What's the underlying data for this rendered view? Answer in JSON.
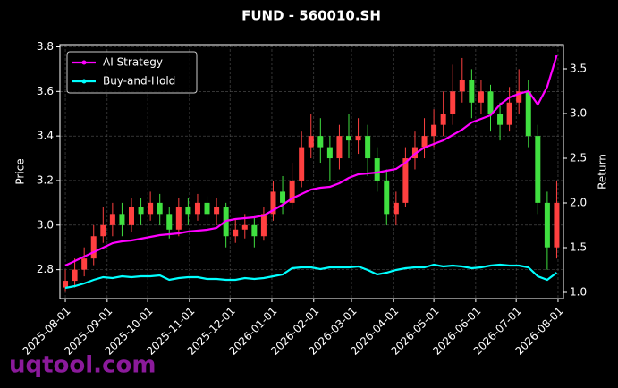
{
  "chart_data": {
    "type": "candlestick",
    "title": "FUND - 560010.SH",
    "x": [
      "2025-08-01",
      "2025-08-08",
      "2025-08-15",
      "2025-08-22",
      "2025-08-29",
      "2025-09-05",
      "2025-09-12",
      "2025-09-19",
      "2025-09-26",
      "2025-10-03",
      "2025-10-10",
      "2025-10-17",
      "2025-10-24",
      "2025-10-31",
      "2025-11-07",
      "2025-11-14",
      "2025-11-21",
      "2025-11-28",
      "2025-12-05",
      "2025-12-12",
      "2025-12-19",
      "2025-12-26",
      "2026-01-02",
      "2026-01-09",
      "2026-01-16",
      "2026-01-23",
      "2026-01-30",
      "2026-02-06",
      "2026-02-13",
      "2026-02-20",
      "2026-02-27",
      "2026-03-06",
      "2026-03-13",
      "2026-03-20",
      "2026-03-27",
      "2026-04-03",
      "2026-04-10",
      "2026-04-17",
      "2026-04-24",
      "2026-05-01",
      "2026-05-08",
      "2026-05-15",
      "2026-05-22",
      "2026-05-29",
      "2026-06-05",
      "2026-06-12",
      "2026-06-19",
      "2026-06-26",
      "2026-07-03",
      "2026-07-10",
      "2026-07-17",
      "2026-07-24",
      "2026-07-31"
    ],
    "open": [
      2.72,
      2.75,
      2.8,
      2.85,
      2.95,
      3.0,
      3.05,
      3.0,
      3.08,
      3.05,
      3.1,
      3.05,
      2.98,
      3.08,
      3.05,
      3.1,
      3.05,
      3.08,
      2.95,
      2.98,
      3.0,
      2.95,
      3.05,
      3.15,
      3.1,
      3.2,
      3.35,
      3.4,
      3.35,
      3.3,
      3.4,
      3.38,
      3.4,
      3.3,
      3.2,
      3.05,
      3.1,
      3.3,
      3.35,
      3.4,
      3.45,
      3.5,
      3.6,
      3.65,
      3.55,
      3.6,
      3.5,
      3.45,
      3.55,
      3.6,
      3.4,
      3.1,
      2.9
    ],
    "high": [
      2.8,
      2.85,
      2.9,
      3.0,
      3.08,
      3.1,
      3.1,
      3.12,
      3.12,
      3.15,
      3.14,
      3.08,
      3.12,
      3.12,
      3.14,
      3.13,
      3.12,
      3.1,
      3.03,
      3.05,
      3.04,
      3.08,
      3.2,
      3.22,
      3.28,
      3.42,
      3.5,
      3.48,
      3.4,
      3.45,
      3.5,
      3.48,
      3.45,
      3.35,
      3.25,
      3.15,
      3.35,
      3.42,
      3.48,
      3.52,
      3.6,
      3.72,
      3.75,
      3.7,
      3.65,
      3.63,
      3.55,
      3.62,
      3.7,
      3.65,
      3.45,
      3.15,
      3.2
    ],
    "low": [
      2.7,
      2.72,
      2.77,
      2.82,
      2.92,
      2.95,
      2.95,
      2.97,
      3.0,
      3.02,
      3.0,
      2.94,
      2.95,
      3.0,
      3.02,
      3.0,
      3.0,
      2.9,
      2.92,
      2.94,
      2.9,
      2.93,
      3.02,
      3.05,
      3.07,
      3.17,
      3.3,
      3.28,
      3.2,
      3.25,
      3.3,
      3.32,
      3.22,
      3.15,
      3.0,
      3.0,
      3.08,
      3.25,
      3.3,
      3.35,
      3.4,
      3.45,
      3.55,
      3.48,
      3.5,
      3.42,
      3.38,
      3.42,
      3.5,
      3.35,
      3.05,
      2.8,
      2.85
    ],
    "close": [
      2.75,
      2.8,
      2.85,
      2.95,
      3.0,
      3.05,
      3.0,
      3.08,
      3.05,
      3.1,
      3.05,
      2.98,
      3.08,
      3.05,
      3.1,
      3.05,
      3.08,
      2.95,
      2.98,
      3.0,
      2.95,
      3.05,
      3.15,
      3.1,
      3.2,
      3.35,
      3.4,
      3.35,
      3.3,
      3.4,
      3.38,
      3.4,
      3.3,
      3.2,
      3.05,
      3.1,
      3.3,
      3.35,
      3.4,
      3.45,
      3.5,
      3.6,
      3.65,
      3.55,
      3.6,
      3.5,
      3.45,
      3.55,
      3.6,
      3.4,
      3.1,
      2.9,
      3.1
    ],
    "up_color": "#ff4040",
    "down_color": "#40e040",
    "series": [
      {
        "name": "AI Strategy",
        "color": "#ff00ff",
        "axis": "y2",
        "values": [
          1.3,
          1.35,
          1.4,
          1.45,
          1.5,
          1.55,
          1.57,
          1.58,
          1.6,
          1.62,
          1.64,
          1.65,
          1.66,
          1.68,
          1.69,
          1.7,
          1.72,
          1.8,
          1.82,
          1.83,
          1.84,
          1.86,
          1.92,
          1.98,
          2.05,
          2.1,
          2.15,
          2.17,
          2.18,
          2.22,
          2.28,
          2.32,
          2.33,
          2.34,
          2.36,
          2.38,
          2.45,
          2.55,
          2.62,
          2.66,
          2.7,
          2.76,
          2.82,
          2.9,
          2.94,
          2.98,
          3.1,
          3.18,
          3.22,
          3.25,
          3.1,
          3.3,
          3.65
        ]
      },
      {
        "name": "Buy-and-Hold",
        "color": "#00ffff",
        "axis": "y2",
        "values": [
          1.05,
          1.07,
          1.1,
          1.14,
          1.17,
          1.16,
          1.18,
          1.17,
          1.18,
          1.18,
          1.19,
          1.14,
          1.16,
          1.17,
          1.17,
          1.15,
          1.15,
          1.14,
          1.14,
          1.16,
          1.15,
          1.16,
          1.18,
          1.2,
          1.27,
          1.28,
          1.28,
          1.26,
          1.28,
          1.28,
          1.28,
          1.29,
          1.25,
          1.2,
          1.22,
          1.25,
          1.27,
          1.28,
          1.28,
          1.31,
          1.29,
          1.3,
          1.29,
          1.27,
          1.28,
          1.3,
          1.31,
          1.3,
          1.3,
          1.28,
          1.18,
          1.14,
          1.22
        ]
      }
    ],
    "ylabel": "Price",
    "y2label": "Return",
    "xlim": [
      "2025-07-28",
      "2026-08-05"
    ],
    "xticks": [
      "2025-08-01",
      "2025-09-01",
      "2025-10-01",
      "2025-11-01",
      "2025-12-01",
      "2026-01-01",
      "2026-02-01",
      "2026-03-01",
      "2026-04-01",
      "2026-05-01",
      "2026-06-01",
      "2026-07-01",
      "2026-08-01"
    ],
    "ylim": [
      2.67,
      3.81
    ],
    "yticks": [
      2.8,
      {
        "value": 3,
        "label": "3.0"
      },
      3.2,
      3.4,
      3.6,
      3.8
    ],
    "y2lim": [
      0.93,
      3.77
    ],
    "y2ticks": [
      {
        "value": 1,
        "label": "1.0"
      },
      1.5,
      {
        "value": 2,
        "label": "2.0"
      },
      2.5,
      {
        "value": 3,
        "label": "3.0"
      },
      3.5
    ],
    "grid": true,
    "legend": "upper left",
    "watermark": "uqtool.com"
  }
}
